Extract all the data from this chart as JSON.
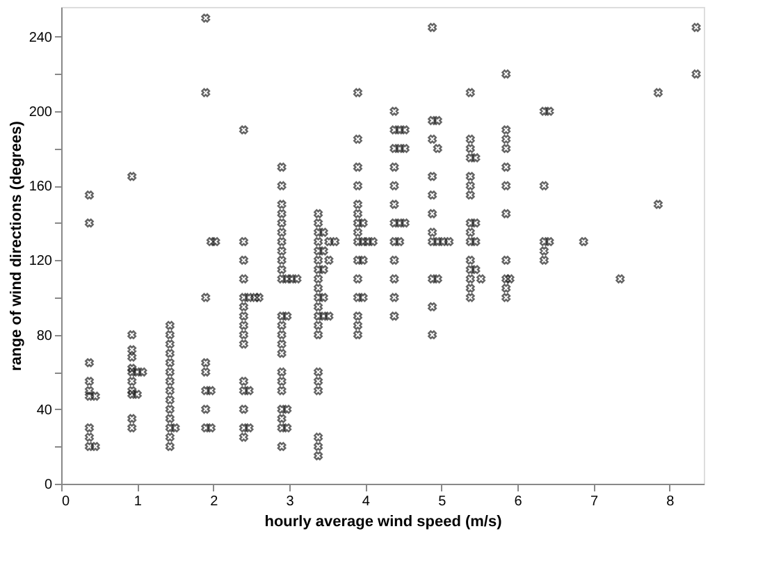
{
  "chart_data": {
    "type": "scatter",
    "xlabel": "hourly average wind speed (m/s)",
    "ylabel": "range of wind directions (degrees)",
    "xlim": [
      0,
      8.45
    ],
    "ylim": [
      0,
      256
    ],
    "xticks": [
      0,
      1,
      2,
      3,
      4,
      5,
      6,
      7,
      8
    ],
    "yticks": [
      0,
      {
        "value": 20,
        "label": null
      },
      40,
      {
        "value": 60,
        "label": null
      },
      80,
      {
        "value": 100,
        "label": null
      },
      120,
      {
        "value": 140,
        "label": null
      },
      160,
      {
        "value": 180,
        "label": null
      },
      200,
      {
        "value": 220,
        "label": null
      },
      240
    ],
    "grid": false,
    "marker": "cross",
    "series": [
      {
        "color": "#222222",
        "x": [
          0.37,
          0.37,
          0.37,
          0.37,
          0.37,
          0.37,
          0.37,
          0.37,
          0.37,
          0.45,
          0.45,
          0.93,
          0.93,
          0.93,
          0.93,
          0.93,
          0.93,
          0.93,
          0.93,
          0.93,
          0.93,
          0.93,
          1.0,
          1.0,
          1.07,
          1.43,
          1.43,
          1.43,
          1.43,
          1.43,
          1.43,
          1.43,
          1.43,
          1.43,
          1.43,
          1.43,
          1.43,
          1.43,
          1.43,
          1.5,
          1.9,
          1.9,
          1.9,
          1.9,
          1.9,
          1.9,
          1.9,
          1.9,
          1.97,
          1.97,
          1.97,
          2.03,
          2.4,
          2.4,
          2.4,
          2.4,
          2.4,
          2.4,
          2.4,
          2.4,
          2.4,
          2.4,
          2.4,
          2.4,
          2.4,
          2.4,
          2.4,
          2.47,
          2.47,
          2.47,
          2.55,
          2.6,
          2.9,
          2.9,
          2.9,
          2.9,
          2.9,
          2.9,
          2.9,
          2.9,
          2.9,
          2.9,
          2.9,
          2.9,
          2.9,
          2.9,
          2.9,
          2.9,
          2.9,
          2.9,
          2.9,
          2.9,
          2.9,
          2.9,
          2.9,
          2.97,
          2.97,
          2.97,
          2.97,
          3.03,
          3.1,
          3.38,
          3.38,
          3.38,
          3.38,
          3.38,
          3.38,
          3.38,
          3.38,
          3.38,
          3.38,
          3.38,
          3.38,
          3.38,
          3.38,
          3.38,
          3.38,
          3.38,
          3.38,
          3.38,
          3.38,
          3.45,
          3.45,
          3.45,
          3.45,
          3.45,
          3.52,
          3.52,
          3.52,
          3.6,
          3.9,
          3.9,
          3.9,
          3.9,
          3.9,
          3.9,
          3.9,
          3.9,
          3.9,
          3.9,
          3.9,
          3.9,
          3.9,
          3.9,
          3.9,
          3.97,
          3.97,
          3.97,
          3.97,
          4.03,
          4.1,
          4.38,
          4.38,
          4.38,
          4.38,
          4.38,
          4.38,
          4.38,
          4.38,
          4.38,
          4.38,
          4.38,
          4.38,
          4.45,
          4.45,
          4.45,
          4.45,
          4.52,
          4.52,
          4.52,
          4.88,
          4.88,
          4.88,
          4.88,
          4.88,
          4.88,
          4.88,
          4.88,
          4.88,
          4.88,
          4.88,
          4.95,
          4.95,
          4.95,
          4.95,
          5.02,
          5.1,
          5.38,
          5.38,
          5.38,
          5.38,
          5.38,
          5.38,
          5.38,
          5.38,
          5.38,
          5.38,
          5.38,
          5.38,
          5.38,
          5.38,
          5.38,
          5.45,
          5.45,
          5.45,
          5.45,
          5.52,
          5.85,
          5.85,
          5.85,
          5.85,
          5.85,
          5.85,
          5.85,
          5.85,
          5.85,
          5.85,
          5.85,
          5.9,
          6.35,
          6.35,
          6.35,
          6.35,
          6.35,
          6.42,
          6.42,
          6.87,
          7.35,
          7.85,
          7.85,
          8.35,
          8.35
        ],
        "values": [
          155,
          140,
          65,
          55,
          50,
          47,
          30,
          25,
          20,
          47,
          20,
          165,
          80,
          72,
          68,
          62,
          60,
          55,
          50,
          48,
          35,
          30,
          60,
          48,
          60,
          85,
          80,
          75,
          70,
          65,
          60,
          55,
          50,
          45,
          40,
          35,
          30,
          25,
          20,
          30,
          250,
          210,
          100,
          65,
          60,
          50,
          40,
          30,
          130,
          50,
          30,
          130,
          190,
          130,
          120,
          110,
          100,
          95,
          90,
          85,
          80,
          75,
          55,
          50,
          40,
          30,
          25,
          100,
          50,
          30,
          100,
          100,
          170,
          160,
          150,
          145,
          140,
          135,
          130,
          125,
          120,
          115,
          110,
          90,
          85,
          80,
          75,
          70,
          60,
          55,
          50,
          40,
          35,
          30,
          20,
          110,
          90,
          40,
          30,
          110,
          110,
          145,
          140,
          135,
          130,
          125,
          120,
          115,
          110,
          105,
          100,
          95,
          90,
          85,
          80,
          60,
          55,
          50,
          25,
          20,
          15,
          135,
          125,
          115,
          100,
          90,
          130,
          120,
          90,
          130,
          210,
          185,
          170,
          160,
          150,
          145,
          140,
          135,
          130,
          120,
          110,
          100,
          90,
          85,
          80,
          140,
          130,
          120,
          100,
          130,
          130,
          200,
          190,
          180,
          170,
          160,
          150,
          140,
          130,
          120,
          110,
          100,
          90,
          190,
          180,
          140,
          130,
          190,
          180,
          140,
          245,
          195,
          185,
          165,
          155,
          145,
          135,
          130,
          110,
          95,
          80,
          195,
          180,
          130,
          110,
          130,
          130,
          210,
          185,
          180,
          175,
          165,
          160,
          155,
          140,
          135,
          130,
          120,
          115,
          110,
          105,
          100,
          175,
          140,
          130,
          115,
          110,
          220,
          190,
          185,
          180,
          170,
          160,
          145,
          120,
          110,
          105,
          100,
          110,
          200,
          160,
          130,
          125,
          120,
          200,
          130,
          130,
          110,
          210,
          150,
          245,
          220
        ]
      }
    ]
  }
}
